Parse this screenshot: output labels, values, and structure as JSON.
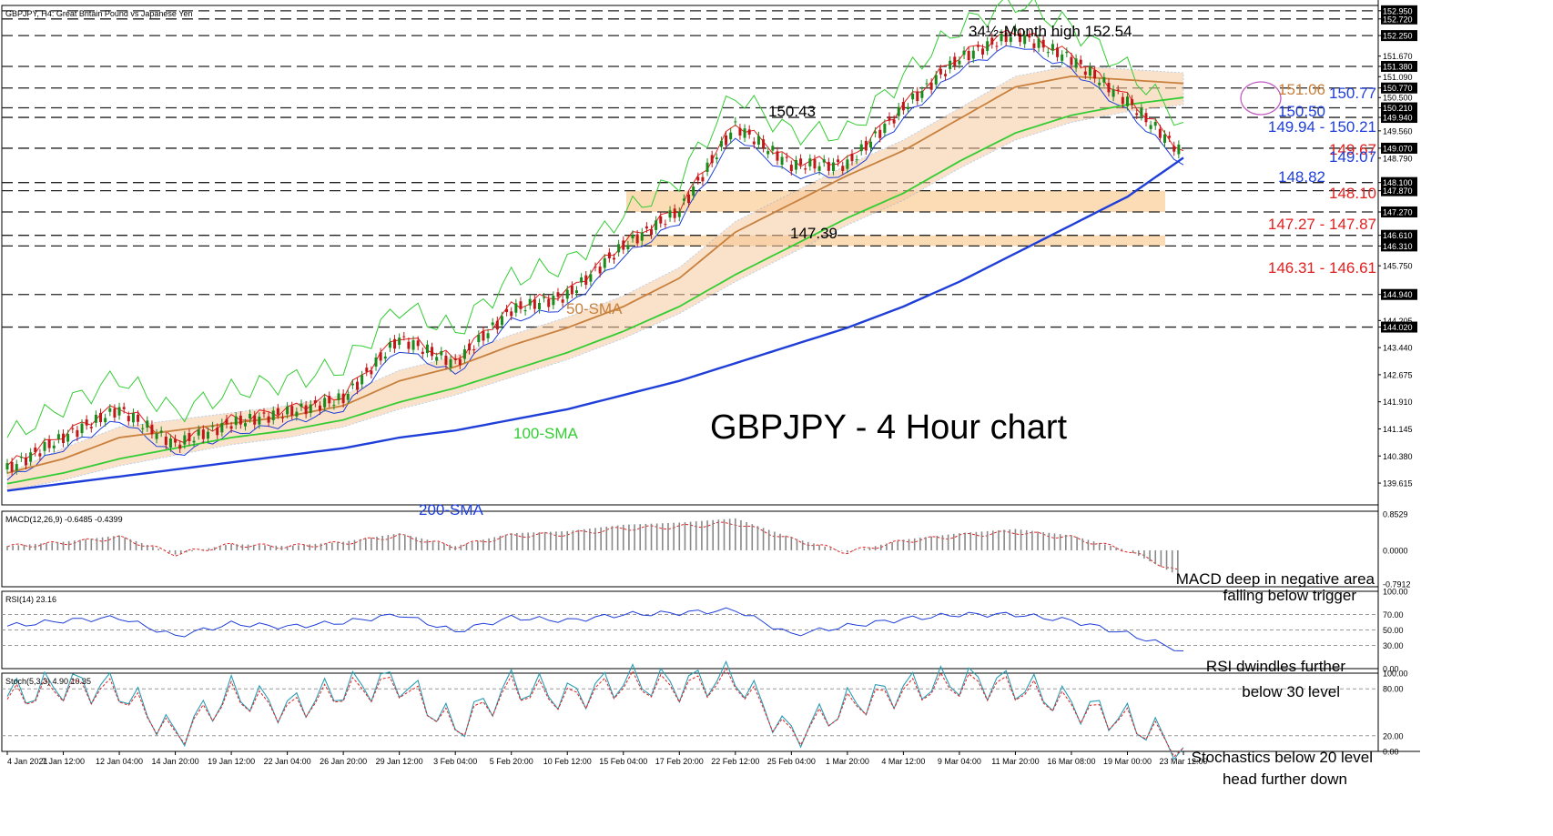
{
  "header": {
    "symbol_label": "GBPJPY, H4:  Great Britain Pound vs Japanese Yen"
  },
  "main_title": "GBPJPY - 4 Hour chart",
  "price_panel": {
    "ylim": [
      139.0,
      153.1
    ],
    "right_axis_ticks": [
      "152.950",
      "152.720",
      "152.250",
      "151.670",
      "151.380",
      "151.090",
      "150.770",
      "150.500",
      "150.210",
      "149.940",
      "149.560",
      "149.070",
      "148.790",
      "148.100",
      "147.870",
      "147.270",
      "146.610",
      "146.310",
      "145.750",
      "144.940",
      "144.205",
      "144.020",
      "143.440",
      "142.675",
      "141.910",
      "141.145",
      "140.380",
      "139.615"
    ],
    "level_lines": [
      152.95,
      152.72,
      152.25,
      151.38,
      150.77,
      150.21,
      149.94,
      149.07,
      148.1,
      147.87,
      147.27,
      146.61,
      146.31,
      144.94,
      144.02
    ],
    "zones": [
      {
        "from": 147.27,
        "to": 147.87,
        "color": "#fbdcb4"
      },
      {
        "from": 146.31,
        "to": 146.61,
        "color": "#fbdcb4"
      }
    ],
    "annotations": {
      "high_label": "34½-Month high 152.54",
      "peak_150": "150.43",
      "trough_147": "147.39",
      "sma50_label": "50-SMA",
      "sma100_label": "100-SMA",
      "sma200_label": "200-SMA",
      "cloud_value": "151.06",
      "sma_value_1": "150.50",
      "sma_value_2": "148.82"
    },
    "right_levels": [
      {
        "text": "150.77",
        "color": "#1f3fd8"
      },
      {
        "text": "149.94 - 150.21",
        "color": "#1f3fd8"
      },
      {
        "text": "149.67",
        "color": "#e02020"
      },
      {
        "text": "149.07",
        "color": "#1f3fd8"
      },
      {
        "text": "148.10",
        "color": "#e02020"
      },
      {
        "text": "147.27 - 147.87",
        "color": "#e02020"
      },
      {
        "text": "146.31 - 146.61",
        "color": "#e02020"
      }
    ]
  },
  "macd_panel": {
    "label": "MACD(12,26,9) -0.6485 -0.4399",
    "ticks": [
      "0.8529",
      "0.0000",
      "-0.7912"
    ],
    "comment_line1": "MACD deep in negative area",
    "comment_line2": "falling below trigger"
  },
  "rsi_panel": {
    "label": "RSI(14) 23.16",
    "ticks": [
      "100.00",
      "70.00",
      "50.00",
      "30.00",
      "0.00"
    ],
    "comment_line1": "RSI dwindles further",
    "comment_line2": "below 30 level"
  },
  "stoch_panel": {
    "label": "Stoch(5,3,3) 4.90 10.35",
    "ticks": [
      "100.00",
      "80.00",
      "20.00",
      "0.00"
    ],
    "comment_line1": "Stochastics below 20 level",
    "comment_line2": "head further down"
  },
  "x_axis": [
    "4 Jan 2021",
    "7 Jan 12:00",
    "12 Jan 04:00",
    "14 Jan 20:00",
    "19 Jan 12:00",
    "22 Jan 04:00",
    "26 Jan 20:00",
    "29 Jan 12:00",
    "3 Feb 04:00",
    "5 Feb 20:00",
    "10 Feb 12:00",
    "15 Feb 04:00",
    "17 Feb 20:00",
    "22 Feb 12:00",
    "25 Feb 04:00",
    "1 Mar 20:00",
    "4 Mar 12:00",
    "9 Mar 04:00",
    "11 Mar 20:00",
    "16 Mar 08:00",
    "19 Mar 00:00",
    "23 Mar 12:00"
  ],
  "chart_data": {
    "type": "line",
    "title": "GBPJPY - 4 Hour chart",
    "x": [
      "4 Jan 2021",
      "7 Jan 12:00",
      "12 Jan 04:00",
      "14 Jan 20:00",
      "19 Jan 12:00",
      "22 Jan 04:00",
      "26 Jan 20:00",
      "29 Jan 12:00",
      "3 Feb 04:00",
      "5 Feb 20:00",
      "10 Feb 12:00",
      "15 Feb 04:00",
      "17 Feb 20:00",
      "22 Feb 12:00",
      "25 Feb 04:00",
      "1 Mar 20:00",
      "4 Mar 12:00",
      "9 Mar 04:00",
      "11 Mar 20:00",
      "16 Mar 08:00",
      "19 Mar 00:00",
      "23 Mar 12:00"
    ],
    "ylim": [
      139.0,
      153.1
    ],
    "series": [
      {
        "name": "Price",
        "color": "#2a8c2a",
        "values": [
          140.0,
          140.9,
          141.7,
          140.7,
          141.3,
          141.6,
          142.0,
          143.7,
          143.0,
          144.5,
          144.9,
          146.3,
          147.3,
          149.7,
          148.6,
          148.6,
          150.2,
          151.6,
          152.3,
          151.6,
          150.4,
          148.9
        ]
      },
      {
        "name": "50-SMA",
        "color": "#c8803c",
        "values": [
          139.9,
          140.3,
          140.9,
          141.1,
          141.3,
          141.5,
          141.8,
          142.5,
          142.9,
          143.5,
          144.0,
          144.6,
          145.4,
          146.7,
          147.5,
          148.3,
          149.0,
          149.9,
          150.8,
          151.1,
          151.0,
          150.9
        ]
      },
      {
        "name": "100-SMA",
        "color": "#33cc33",
        "values": [
          139.6,
          139.9,
          140.3,
          140.6,
          140.9,
          141.1,
          141.4,
          141.9,
          142.3,
          142.8,
          143.3,
          143.9,
          144.6,
          145.5,
          146.3,
          147.1,
          147.8,
          148.7,
          149.5,
          150.0,
          150.3,
          150.5
        ]
      },
      {
        "name": "200-SMA",
        "color": "#1f3fd8",
        "values": [
          139.4,
          139.6,
          139.8,
          140.0,
          140.2,
          140.4,
          140.6,
          140.9,
          141.1,
          141.4,
          141.7,
          142.1,
          142.5,
          143.0,
          143.5,
          144.0,
          144.6,
          145.3,
          146.1,
          146.9,
          147.7,
          148.8
        ]
      }
    ],
    "macd": {
      "name": "MACD(12,26,9)",
      "ylim": [
        -0.7912,
        0.8529
      ],
      "values": [
        0.1,
        0.2,
        0.35,
        -0.1,
        0.15,
        0.1,
        0.2,
        0.4,
        0.1,
        0.4,
        0.45,
        0.6,
        0.65,
        0.75,
        0.3,
        -0.05,
        0.25,
        0.4,
        0.5,
        0.35,
        0.0,
        -0.65
      ]
    },
    "rsi": {
      "name": "RSI(14)",
      "ylim": [
        0,
        100
      ],
      "values": [
        55,
        62,
        66,
        42,
        58,
        54,
        60,
        70,
        48,
        66,
        62,
        70,
        72,
        76,
        44,
        55,
        64,
        70,
        70,
        62,
        45,
        23
      ]
    },
    "stoch": {
      "name": "Stoch(5,3,3)",
      "ylim": [
        0,
        100
      ],
      "values": [
        70,
        85,
        80,
        20,
        75,
        55,
        80,
        90,
        30,
        85,
        70,
        90,
        85,
        95,
        20,
        60,
        80,
        90,
        85,
        60,
        40,
        5
      ]
    }
  }
}
